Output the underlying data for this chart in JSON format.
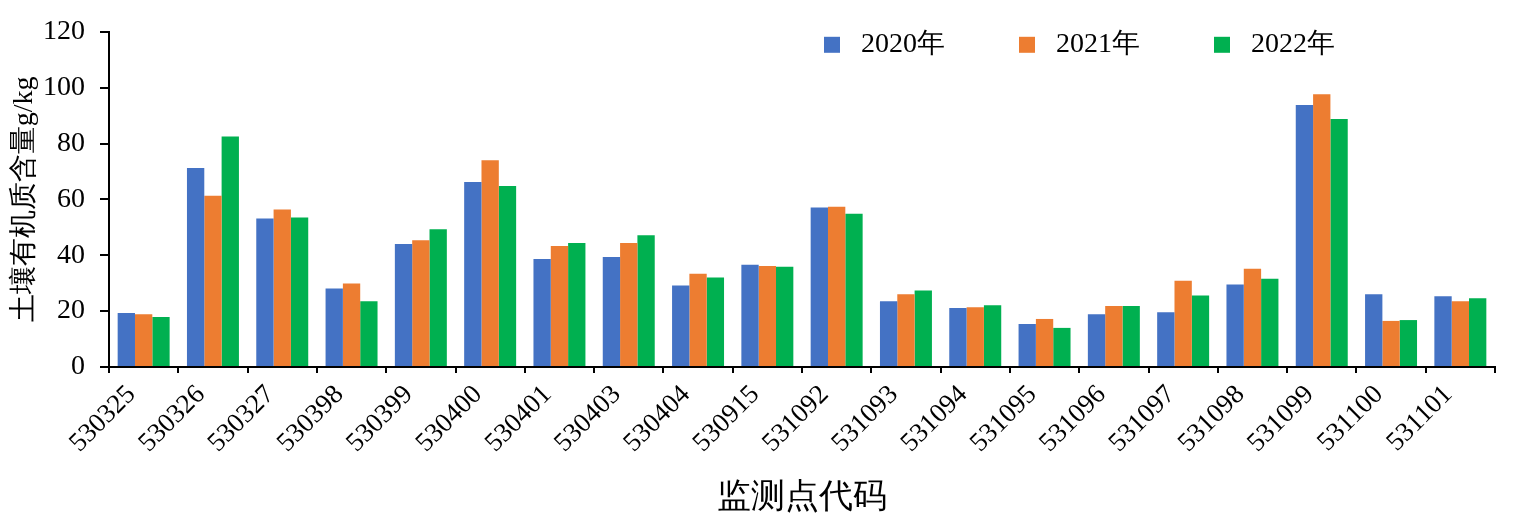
{
  "chart_data": {
    "type": "bar",
    "xlabel": "监测点代码",
    "ylabel": "土壤有机质含量g/kg",
    "categories": [
      "530325",
      "530326",
      "530327",
      "530398",
      "530399",
      "530400",
      "530401",
      "530403",
      "530404",
      "530915",
      "531092",
      "531093",
      "531094",
      "531095",
      "531096",
      "531097",
      "531098",
      "531099",
      "531100",
      "531101"
    ],
    "series": [
      {
        "name": "2020年",
        "color": "#4472c4",
        "values": [
          19.3,
          71.2,
          53.2,
          28.1,
          44.0,
          66.2,
          38.7,
          39.4,
          29.2,
          36.6,
          57.1,
          23.5,
          21.1,
          15.4,
          18.9,
          19.6,
          29.5,
          93.8,
          26.0,
          25.3
        ]
      },
      {
        "name": "2021年",
        "color": "#ed7d31",
        "values": [
          18.9,
          61.3,
          56.4,
          29.9,
          45.4,
          74.0,
          43.3,
          44.4,
          33.4,
          36.2,
          57.4,
          26.0,
          21.4,
          17.2,
          21.8,
          30.9,
          35.2,
          97.6,
          16.5,
          23.5
        ]
      },
      {
        "name": "2022年",
        "color": "#00b050",
        "values": [
          17.9,
          82.5,
          53.5,
          23.5,
          49.3,
          64.8,
          44.4,
          47.2,
          32.0,
          35.9,
          54.9,
          27.4,
          22.1,
          14.0,
          21.8,
          25.6,
          31.6,
          88.8,
          16.8,
          24.6
        ]
      }
    ],
    "ylim": [
      0,
      120
    ],
    "yticks": [
      0,
      20,
      40,
      60,
      80,
      100,
      120
    ],
    "grid": false,
    "legend": "top right"
  }
}
